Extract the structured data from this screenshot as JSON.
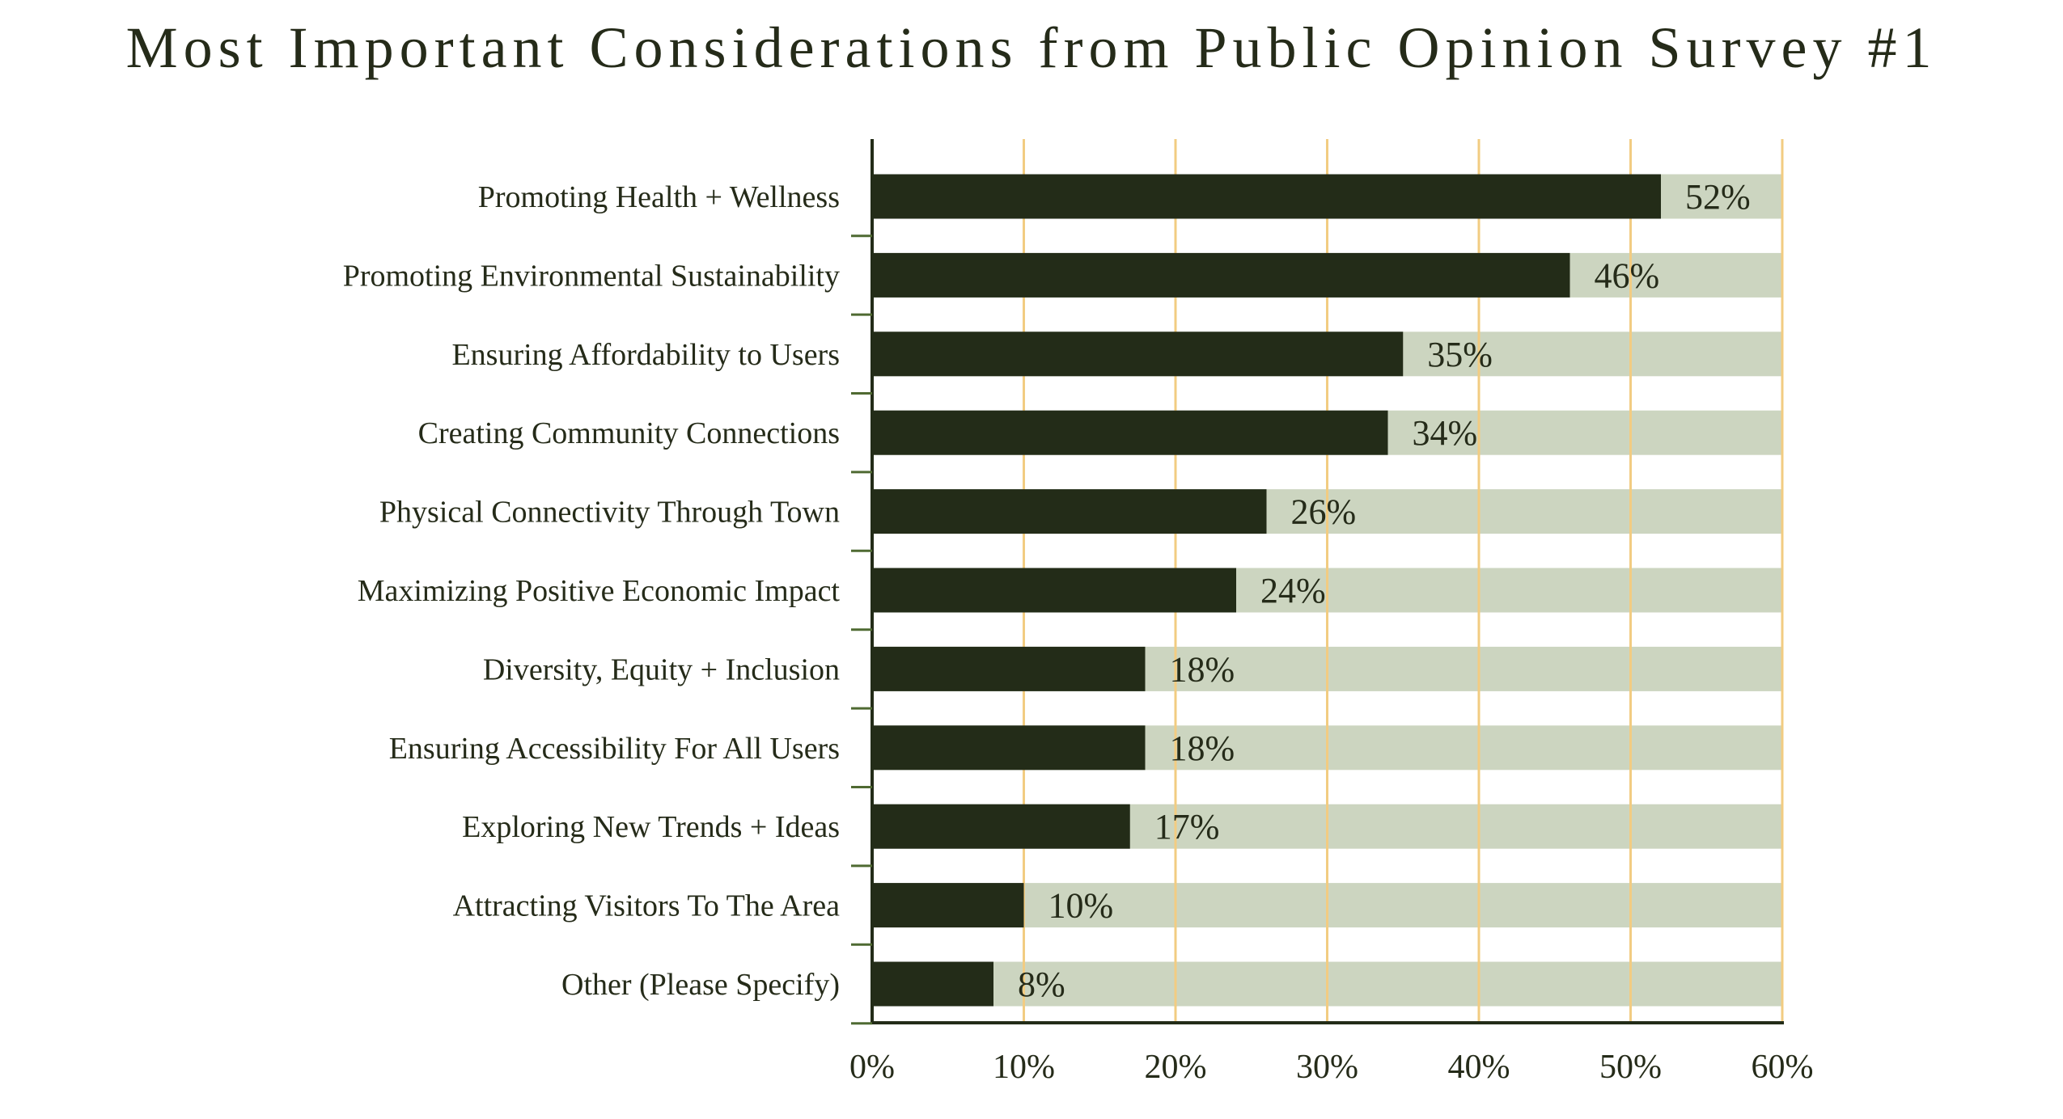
{
  "chart_data": {
    "type": "bar",
    "orientation": "horizontal",
    "title": "Most Important Considerations from Public Opinion Survey #1",
    "categories": [
      "Promoting Health + Wellness",
      "Promoting Environmental Sustainability",
      "Ensuring Affordability to Users",
      "Creating Community Connections",
      "Physical Connectivity Through Town",
      "Maximizing Positive Economic Impact",
      "Diversity, Equity + Inclusion",
      "Ensuring Accessibility For All Users",
      "Exploring New Trends + Ideas",
      "Attracting Visitors To The Area",
      "Other (Please Specify)"
    ],
    "values": [
      52,
      46,
      35,
      34,
      26,
      24,
      18,
      18,
      17,
      10,
      8
    ],
    "value_labels": [
      "52%",
      "46%",
      "35%",
      "34%",
      "26%",
      "24%",
      "18%",
      "18%",
      "17%",
      "10%",
      "8%"
    ],
    "xlim": [
      0,
      60
    ],
    "xticks": [
      0,
      10,
      20,
      30,
      40,
      50,
      60
    ],
    "xtick_labels": [
      "0%",
      "10%",
      "20%",
      "30%",
      "40%",
      "50%",
      "60%"
    ],
    "xlabel": "",
    "ylabel": "",
    "grid": "vertical",
    "colors": {
      "bar": "#232c18",
      "track": "#ccd5c0",
      "grid": "#f2cc82",
      "axis": "#232c18",
      "tick_mark": "#4f6a32",
      "text": "#252b19"
    }
  }
}
